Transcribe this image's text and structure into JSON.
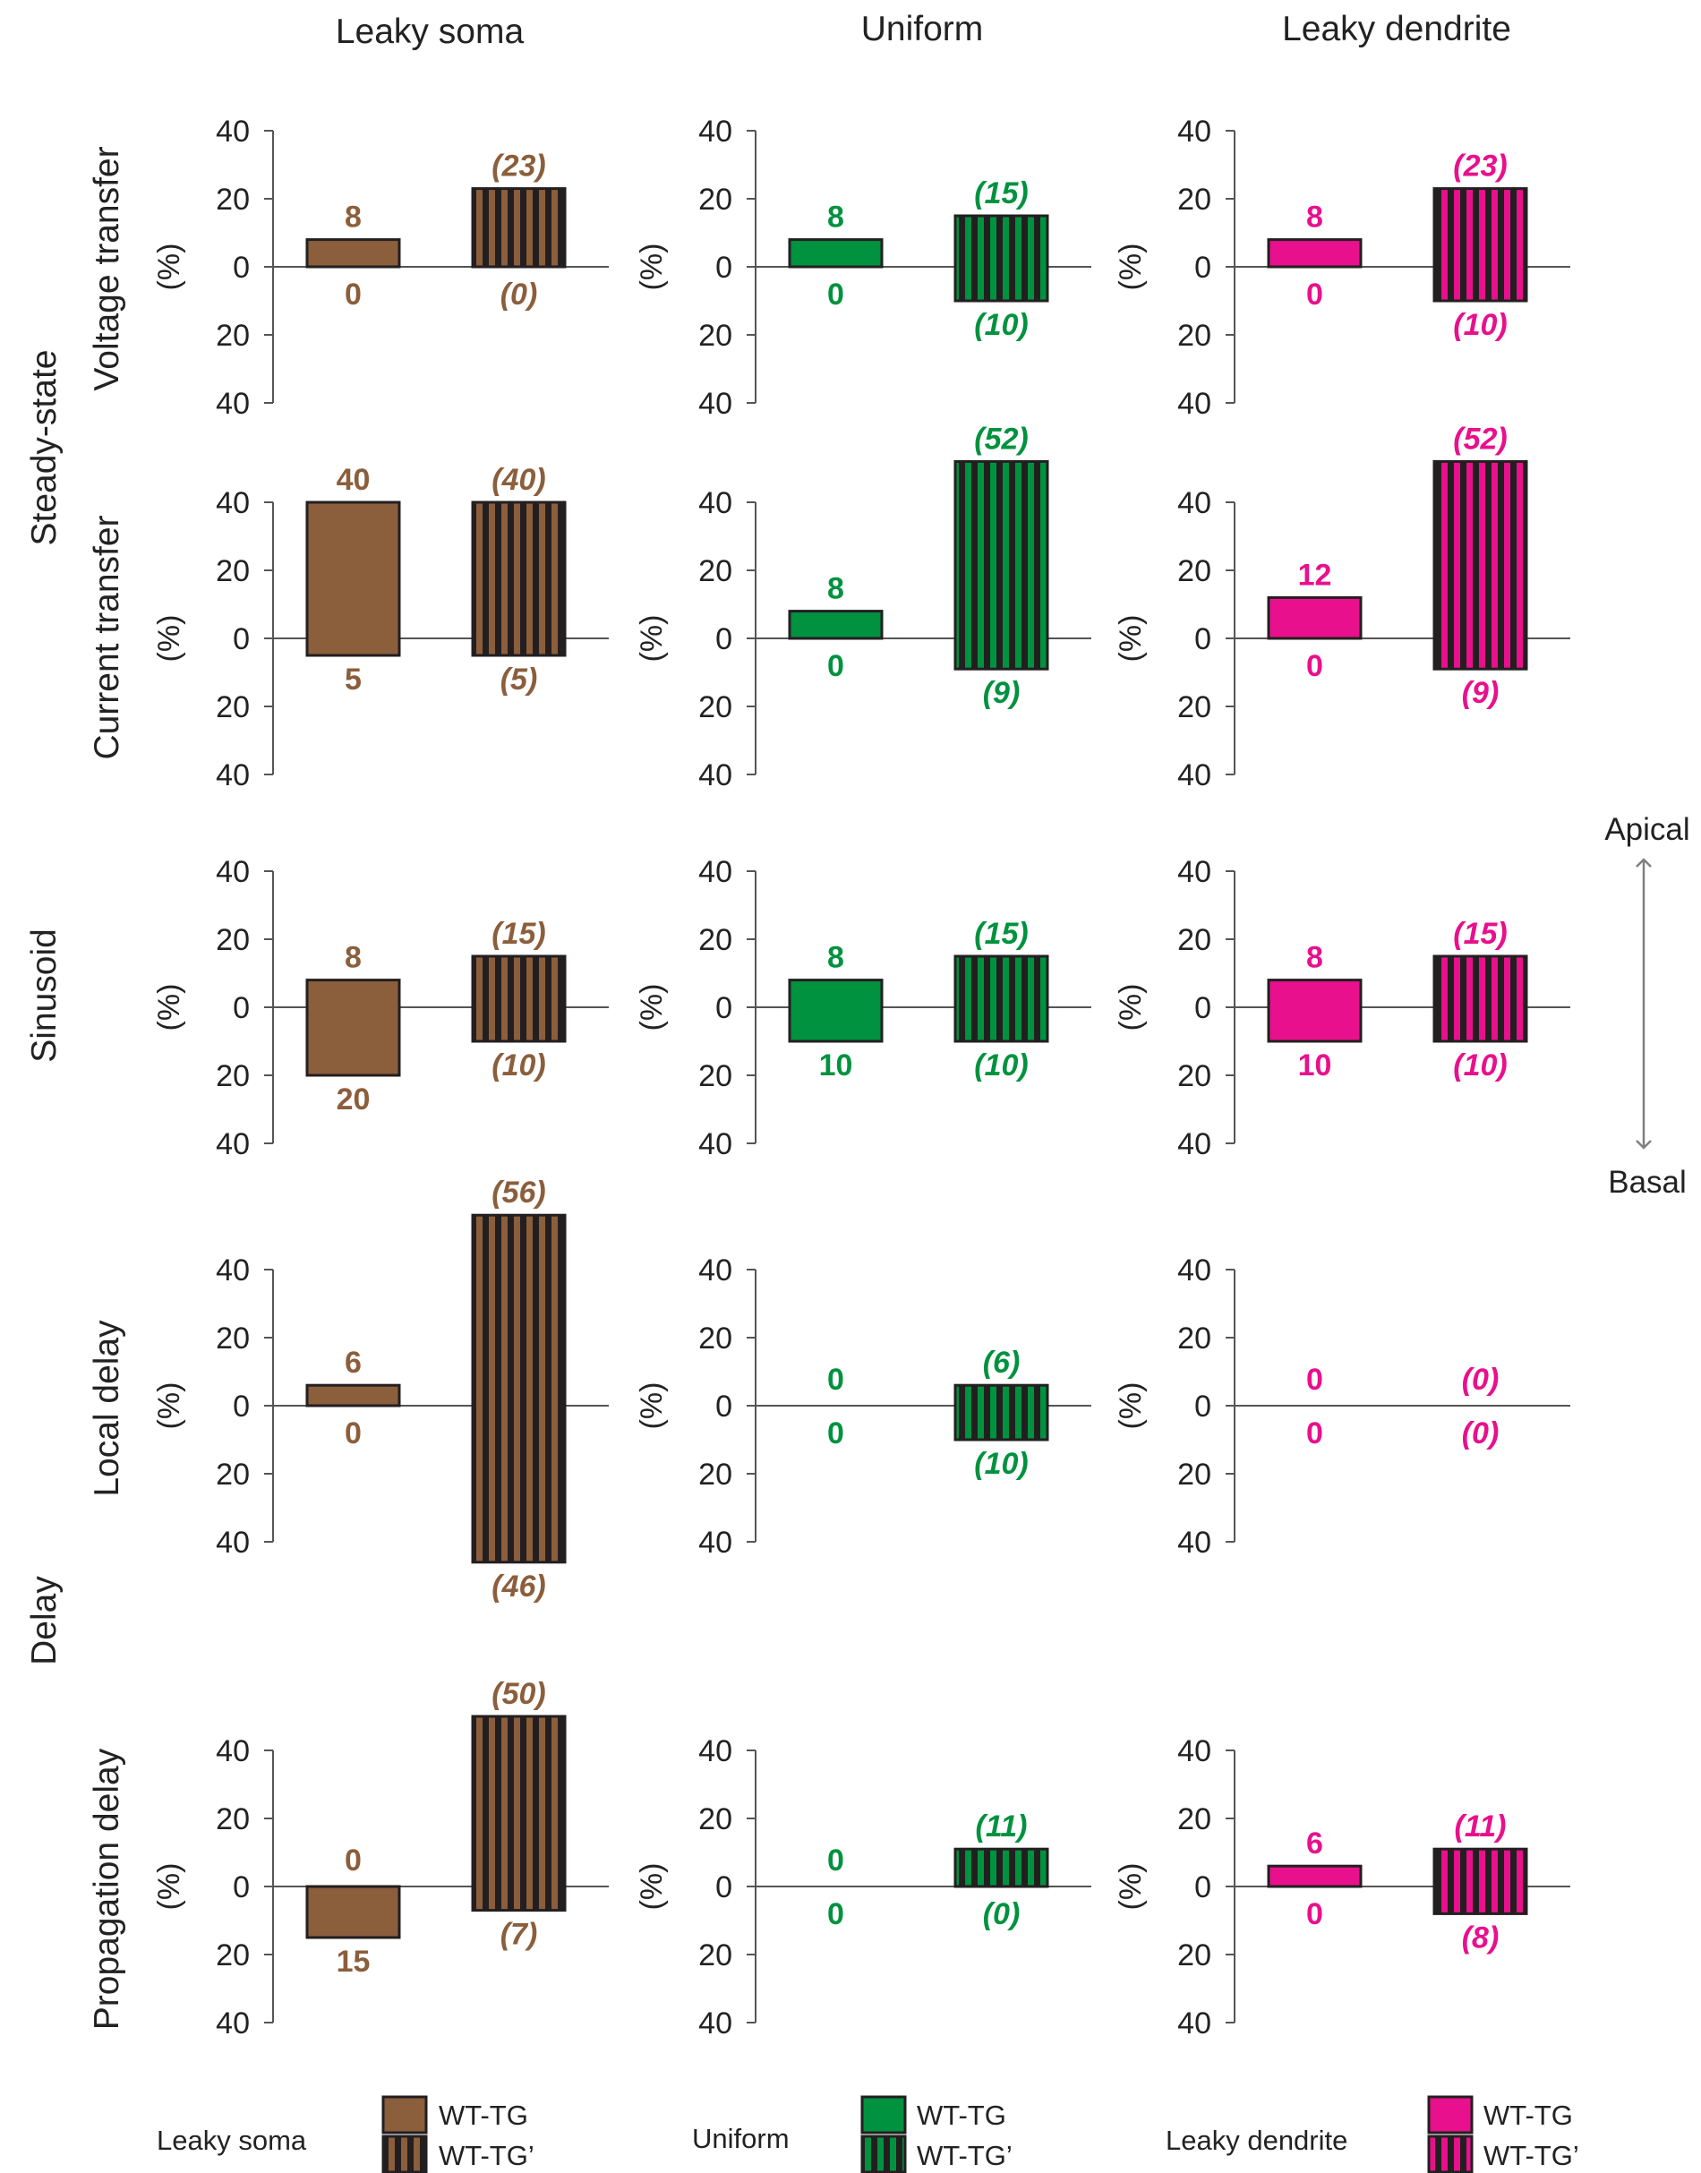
{
  "colors": {
    "leaky_soma": "#8b5e3c",
    "uniform": "#00923f",
    "leaky_dendrite": "#e8108c",
    "stripe_dark": "#231f20",
    "axis": "#555555"
  },
  "headers": {
    "columns": [
      "Leaky soma",
      "Uniform",
      "Leaky dendrite"
    ],
    "groups": [
      "Steady-state",
      "Sinusoid",
      "Delay"
    ],
    "rows": [
      "Voltage transfer",
      "Current transfer",
      "",
      "Local delay",
      "Propagation delay"
    ],
    "unit": "(%)"
  },
  "arrow": {
    "top": "Apical",
    "bottom": "Basal"
  },
  "legend": [
    {
      "label": "Leaky soma",
      "wt_tg": "WT-TG",
      "wt_tg_prime": "WT-TG’"
    },
    {
      "label": "Uniform",
      "wt_tg": "WT-TG",
      "wt_tg_prime": "WT-TG’"
    },
    {
      "label": "Leaky dendrite",
      "wt_tg": "WT-TG",
      "wt_tg_prime": "WT-TG’"
    }
  ],
  "chart_data": {
    "type": "bar",
    "title": "",
    "ylabel": "(%)",
    "ylim": [
      -40,
      40
    ],
    "y_ticks": [
      "40",
      "20",
      "0",
      "20",
      "40"
    ],
    "series_names": [
      "WT-TG",
      "WT-TG’"
    ],
    "columns": [
      "Leaky soma",
      "Uniform",
      "Leaky dendrite"
    ],
    "rows": [
      {
        "name": "Voltage transfer",
        "cells": [
          {
            "wt_tg": {
              "up": 8,
              "down": 0,
              "up_label": "8",
              "down_label": "0"
            },
            "wt_tg_prime": {
              "up": 23,
              "down": 0,
              "up_label": "(23)",
              "down_label": "(0)"
            }
          },
          {
            "wt_tg": {
              "up": 8,
              "down": 0,
              "up_label": "8",
              "down_label": "0"
            },
            "wt_tg_prime": {
              "up": 15,
              "down": 10,
              "up_label": "(15)",
              "down_label": "(10)"
            }
          },
          {
            "wt_tg": {
              "up": 8,
              "down": 0,
              "up_label": "8",
              "down_label": "0"
            },
            "wt_tg_prime": {
              "up": 23,
              "down": 10,
              "up_label": "(23)",
              "down_label": "(10)"
            }
          }
        ]
      },
      {
        "name": "Current transfer",
        "cells": [
          {
            "wt_tg": {
              "up": 40,
              "down": 5,
              "up_label": "40",
              "down_label": "5"
            },
            "wt_tg_prime": {
              "up": 40,
              "down": 5,
              "up_label": "(40)",
              "down_label": "(5)"
            }
          },
          {
            "wt_tg": {
              "up": 8,
              "down": 0,
              "up_label": "8",
              "down_label": "0"
            },
            "wt_tg_prime": {
              "up": 52,
              "down": 9,
              "up_label": "(52)",
              "down_label": "(9)"
            }
          },
          {
            "wt_tg": {
              "up": 12,
              "down": 0,
              "up_label": "12",
              "down_label": "0"
            },
            "wt_tg_prime": {
              "up": 52,
              "down": 9,
              "up_label": "(52)",
              "down_label": "(9)"
            }
          }
        ]
      },
      {
        "name": "Sinusoid",
        "cells": [
          {
            "wt_tg": {
              "up": 8,
              "down": 20,
              "up_label": "8",
              "down_label": "20"
            },
            "wt_tg_prime": {
              "up": 15,
              "down": 10,
              "up_label": "(15)",
              "down_label": "(10)"
            }
          },
          {
            "wt_tg": {
              "up": 8,
              "down": 10,
              "up_label": "8",
              "down_label": "10"
            },
            "wt_tg_prime": {
              "up": 15,
              "down": 10,
              "up_label": "(15)",
              "down_label": "(10)"
            }
          },
          {
            "wt_tg": {
              "up": 8,
              "down": 10,
              "up_label": "8",
              "down_label": "10"
            },
            "wt_tg_prime": {
              "up": 15,
              "down": 10,
              "up_label": "(15)",
              "down_label": "(10)"
            }
          }
        ]
      },
      {
        "name": "Local delay",
        "cells": [
          {
            "wt_tg": {
              "up": 6,
              "down": 0,
              "up_label": "6",
              "down_label": "0"
            },
            "wt_tg_prime": {
              "up": 56,
              "down": 46,
              "up_label": "(56)",
              "down_label": "(46)"
            }
          },
          {
            "wt_tg": {
              "up": 0,
              "down": 0,
              "up_label": "0",
              "down_label": "0"
            },
            "wt_tg_prime": {
              "up": 6,
              "down": 10,
              "up_label": "(6)",
              "down_label": "(10)"
            }
          },
          {
            "wt_tg": {
              "up": 0,
              "down": 0,
              "up_label": "0",
              "down_label": "0"
            },
            "wt_tg_prime": {
              "up": 0,
              "down": 0,
              "up_label": "(0)",
              "down_label": "(0)"
            }
          }
        ]
      },
      {
        "name": "Propagation delay",
        "cells": [
          {
            "wt_tg": {
              "up": 0,
              "down": 15,
              "up_label": "0",
              "down_label": "15"
            },
            "wt_tg_prime": {
              "up": 50,
              "down": 7,
              "up_label": "(50)",
              "down_label": "(7)"
            }
          },
          {
            "wt_tg": {
              "up": 0,
              "down": 0,
              "up_label": "0",
              "down_label": "0"
            },
            "wt_tg_prime": {
              "up": 11,
              "down": 0,
              "up_label": "(11)",
              "down_label": "(0)"
            }
          },
          {
            "wt_tg": {
              "up": 6,
              "down": 0,
              "up_label": "6",
              "down_label": "0"
            },
            "wt_tg_prime": {
              "up": 11,
              "down": 8,
              "up_label": "(11)",
              "down_label": "(8)"
            }
          }
        ]
      }
    ]
  }
}
